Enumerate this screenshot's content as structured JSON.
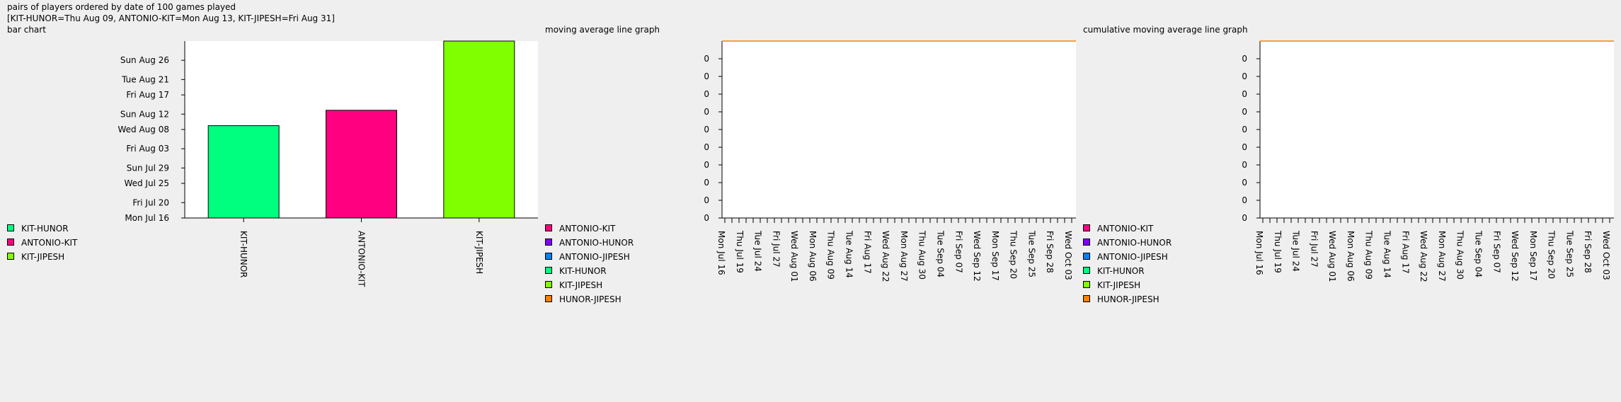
{
  "header": {
    "line1": "pairs of players ordered by date of 100 games played",
    "line2": "[KIT-HUNOR=Thu Aug 09, ANTONIO-KIT=Mon Aug 13, KIT-JIPESH=Fri Aug 31]",
    "line3": "bar chart"
  },
  "chart_data": [
    {
      "type": "bar",
      "title": "bar chart",
      "categories": [
        "KIT-HUNOR",
        "ANTONIO-KIT",
        "KIT-JIPESH"
      ],
      "values": [
        "2018-08-09",
        "2018-08-13",
        "2018-08-31"
      ],
      "colors": [
        "#00ff7f",
        "#ff0080",
        "#80ff00"
      ],
      "y_tick_labels": [
        "Mon Jul 16",
        "Fri Jul 20",
        "Wed Jul 25",
        "Sun Jul 29",
        "Fri Aug 03",
        "Wed Aug 08",
        "Sun Aug 12",
        "Fri Aug 17",
        "Tue Aug 21",
        "Sun Aug 26"
      ],
      "y_ticks": [
        "2018-07-16",
        "2018-07-20",
        "2018-07-25",
        "2018-07-29",
        "2018-08-03",
        "2018-08-08",
        "2018-08-12",
        "2018-08-17",
        "2018-08-21",
        "2018-08-26"
      ],
      "ylim": [
        "2018-07-16",
        "2018-08-31"
      ],
      "legend": [
        {
          "label": "KIT-HUNOR",
          "color": "#00ff7f"
        },
        {
          "label": "ANTONIO-KIT",
          "color": "#ff0080"
        },
        {
          "label": "KIT-JIPESH",
          "color": "#80ff00"
        }
      ],
      "legend_position": "bottom-left"
    },
    {
      "type": "line",
      "title": "moving average line graph",
      "x_tick_labels": [
        "Mon Jul 16",
        "Thu Jul 19",
        "Tue Jul 24",
        "Fri Jul 27",
        "Wed Aug 01",
        "Mon Aug 06",
        "Thu Aug 09",
        "Tue Aug 14",
        "Fri Aug 17",
        "Wed Aug 22",
        "Mon Aug 27",
        "Thu Aug 30",
        "Tue Sep 04",
        "Fri Sep 07",
        "Wed Sep 12",
        "Mon Sep 17",
        "Thu Sep 20",
        "Tue Sep 25",
        "Fri Sep 28",
        "Wed Oct 03"
      ],
      "x_minor_tick_count": 50,
      "y_tick_labels": [
        "0",
        "0",
        "0",
        "0",
        "0",
        "0",
        "0",
        "0",
        "0",
        "0"
      ],
      "series": [
        {
          "name": "HUNOR-JIPESH",
          "color": "#ff8000",
          "values": [
            0,
            0
          ]
        }
      ],
      "legend": [
        {
          "label": "ANTONIO-KIT",
          "color": "#ff0080"
        },
        {
          "label": "ANTONIO-HUNOR",
          "color": "#8000ff"
        },
        {
          "label": "ANTONIO-JIPESH",
          "color": "#0080ff"
        },
        {
          "label": "KIT-HUNOR",
          "color": "#00ff7f"
        },
        {
          "label": "KIT-JIPESH",
          "color": "#80ff00"
        },
        {
          "label": "HUNOR-JIPESH",
          "color": "#ff8000"
        }
      ],
      "legend_position": "bottom-left"
    },
    {
      "type": "line",
      "title": "cumulative moving average line graph",
      "x_tick_labels": [
        "Mon Jul 16",
        "Thu Jul 19",
        "Tue Jul 24",
        "Fri Jul 27",
        "Wed Aug 01",
        "Mon Aug 06",
        "Thu Aug 09",
        "Tue Aug 14",
        "Fri Aug 17",
        "Wed Aug 22",
        "Mon Aug 27",
        "Thu Aug 30",
        "Tue Sep 04",
        "Fri Sep 07",
        "Wed Sep 12",
        "Mon Sep 17",
        "Thu Sep 20",
        "Tue Sep 25",
        "Fri Sep 28",
        "Wed Oct 03"
      ],
      "x_minor_tick_count": 50,
      "y_tick_labels": [
        "0",
        "0",
        "0",
        "0",
        "0",
        "0",
        "0",
        "0",
        "0",
        "0"
      ],
      "series": [
        {
          "name": "HUNOR-JIPESH",
          "color": "#ff8000",
          "values": [
            0,
            0
          ]
        }
      ],
      "legend": [
        {
          "label": "ANTONIO-KIT",
          "color": "#ff0080"
        },
        {
          "label": "ANTONIO-HUNOR",
          "color": "#8000ff"
        },
        {
          "label": "ANTONIO-JIPESH",
          "color": "#0080ff"
        },
        {
          "label": "KIT-HUNOR",
          "color": "#00ff7f"
        },
        {
          "label": "KIT-JIPESH",
          "color": "#80ff00"
        },
        {
          "label": "HUNOR-JIPESH",
          "color": "#ff8000"
        }
      ],
      "legend_position": "bottom-left"
    }
  ]
}
